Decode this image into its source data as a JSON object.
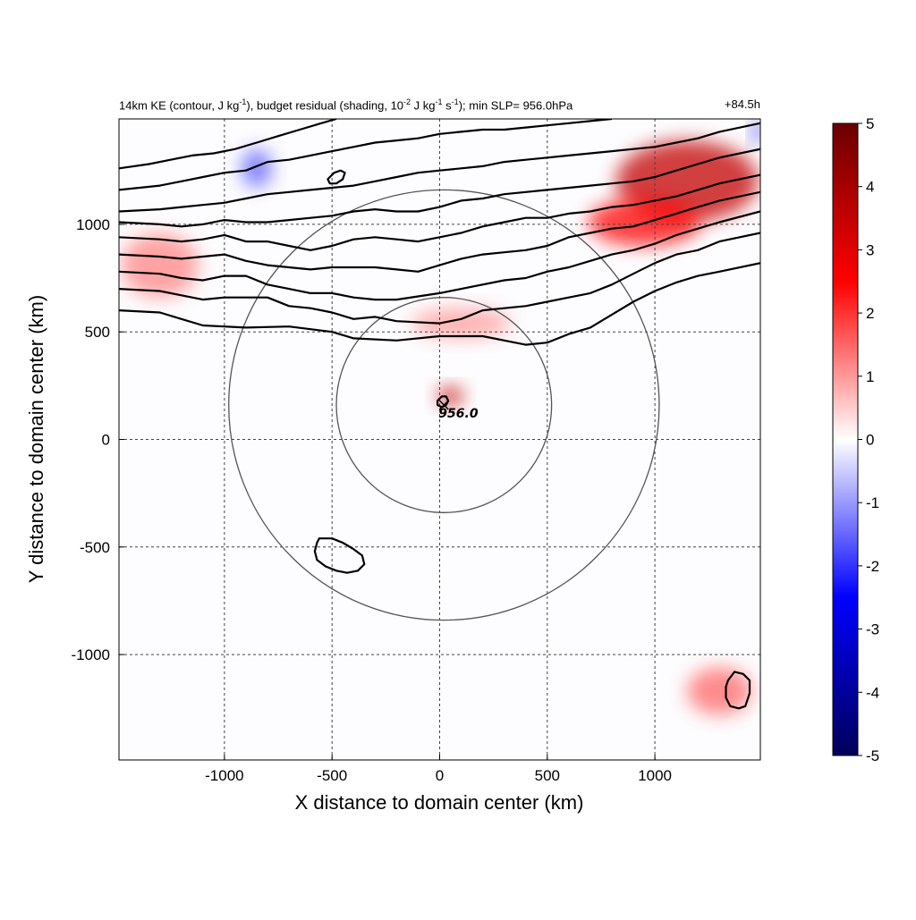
{
  "header": {
    "title_prefix": "14km KE (contour, J kg",
    "sup1": "-1",
    "title_mid1": "), budget residual (shading, 10",
    "sup2": "-2",
    "title_mid2": " J kg",
    "sup3": "-1",
    "title_mid3": " s",
    "sup4": "-1",
    "title_suffix": "); min SLP= 956.0hPa",
    "time_label": "+84.5h"
  },
  "chart_data": {
    "type": "heatmap",
    "xlabel": "X distance to domain center (km)",
    "ylabel": "Y distance to domain center (km)",
    "xlim": [
      -1490,
      1490
    ],
    "ylim": [
      -1490,
      1490
    ],
    "x_ticks": [
      -1000,
      -500,
      0,
      500,
      1000
    ],
    "y_ticks": [
      -1000,
      -500,
      0,
      500,
      1000
    ],
    "x_tick_labels": [
      "-1000",
      "-500",
      "0",
      "500",
      "1000"
    ],
    "y_tick_labels": [
      "-1000",
      "-500",
      "0",
      "500",
      "1000"
    ],
    "grid": true,
    "colorbar": {
      "min": -5,
      "max": 5,
      "ticks": [
        5,
        4,
        3,
        2,
        1,
        0,
        -1,
        -2,
        -3,
        -4,
        -5
      ],
      "tick_labels": [
        "5",
        "4",
        "3",
        "2",
        "1",
        "0",
        "-1",
        "-2",
        "-3",
        "-4",
        "-5"
      ],
      "colormap": [
        "#00005a",
        "#0000ff",
        "#ffffff",
        "#ff0000",
        "#6a0000"
      ]
    },
    "storm_center": {
      "x": 20,
      "y": 160,
      "label": "956.0"
    },
    "range_rings_km": [
      500,
      1000
    ],
    "ke_contours": [
      [
        [
          -1490,
          600
        ],
        [
          -1300,
          590
        ],
        [
          -1200,
          560
        ],
        [
          -1100,
          530
        ],
        [
          -1000,
          525
        ],
        [
          -900,
          520
        ],
        [
          -700,
          525
        ],
        [
          -500,
          500
        ],
        [
          -400,
          470
        ],
        [
          -200,
          460
        ],
        [
          0,
          480
        ],
        [
          200,
          480
        ],
        [
          400,
          440
        ],
        [
          500,
          450
        ],
        [
          600,
          490
        ],
        [
          700,
          520
        ],
        [
          800,
          580
        ],
        [
          900,
          640
        ],
        [
          1000,
          690
        ],
        [
          1100,
          730
        ],
        [
          1200,
          760
        ],
        [
          1300,
          780
        ],
        [
          1490,
          820
        ]
      ],
      [
        [
          -1490,
          700
        ],
        [
          -1300,
          690
        ],
        [
          -1200,
          670
        ],
        [
          -1100,
          650
        ],
        [
          -1000,
          660
        ],
        [
          -900,
          660
        ],
        [
          -800,
          660
        ],
        [
          -700,
          620
        ],
        [
          -600,
          610
        ],
        [
          -500,
          590
        ],
        [
          -400,
          560
        ],
        [
          -300,
          570
        ],
        [
          -200,
          550
        ],
        [
          0,
          540
        ],
        [
          100,
          560
        ],
        [
          200,
          600
        ],
        [
          300,
          610
        ],
        [
          400,
          620
        ],
        [
          500,
          640
        ],
        [
          600,
          660
        ],
        [
          700,
          680
        ],
        [
          800,
          720
        ],
        [
          900,
          770
        ],
        [
          1000,
          820
        ],
        [
          1100,
          860
        ],
        [
          1200,
          880
        ],
        [
          1300,
          920
        ],
        [
          1490,
          960
        ]
      ],
      [
        [
          -1490,
          780
        ],
        [
          -1300,
          770
        ],
        [
          -1200,
          750
        ],
        [
          -1100,
          740
        ],
        [
          -1000,
          760
        ],
        [
          -900,
          760
        ],
        [
          -800,
          720
        ],
        [
          -700,
          700
        ],
        [
          -600,
          680
        ],
        [
          -500,
          680
        ],
        [
          -400,
          660
        ],
        [
          -300,
          650
        ],
        [
          -200,
          650
        ],
        [
          0,
          680
        ],
        [
          100,
          700
        ],
        [
          300,
          740
        ],
        [
          400,
          750
        ],
        [
          500,
          780
        ],
        [
          600,
          800
        ],
        [
          700,
          830
        ],
        [
          800,
          860
        ],
        [
          900,
          880
        ],
        [
          1000,
          910
        ],
        [
          1100,
          950
        ],
        [
          1200,
          980
        ],
        [
          1300,
          1010
        ],
        [
          1490,
          1060
        ]
      ],
      [
        [
          -1490,
          860
        ],
        [
          -1300,
          850
        ],
        [
          -1200,
          840
        ],
        [
          -1100,
          850
        ],
        [
          -1000,
          860
        ],
        [
          -900,
          830
        ],
        [
          -800,
          810
        ],
        [
          -700,
          800
        ],
        [
          -600,
          790
        ],
        [
          -500,
          800
        ],
        [
          -300,
          800
        ],
        [
          -200,
          790
        ],
        [
          -100,
          780
        ],
        [
          0,
          810
        ],
        [
          100,
          840
        ],
        [
          200,
          860
        ],
        [
          300,
          870
        ],
        [
          400,
          880
        ],
        [
          500,
          900
        ],
        [
          600,
          940
        ],
        [
          700,
          960
        ],
        [
          800,
          980
        ],
        [
          900,
          990
        ],
        [
          1000,
          1020
        ],
        [
          1100,
          1050
        ],
        [
          1200,
          1080
        ],
        [
          1300,
          1110
        ],
        [
          1490,
          1150
        ]
      ],
      [
        [
          -1490,
          940
        ],
        [
          -1300,
          930
        ],
        [
          -1200,
          920
        ],
        [
          -1100,
          930
        ],
        [
          -1000,
          950
        ],
        [
          -900,
          920
        ],
        [
          -800,
          920
        ],
        [
          -700,
          900
        ],
        [
          -600,
          880
        ],
        [
          -500,
          900
        ],
        [
          -400,
          930
        ],
        [
          -300,
          940
        ],
        [
          -200,
          930
        ],
        [
          -100,
          920
        ],
        [
          0,
          940
        ],
        [
          100,
          960
        ],
        [
          200,
          990
        ],
        [
          300,
          1010
        ],
        [
          400,
          1030
        ],
        [
          500,
          1030
        ],
        [
          600,
          1050
        ],
        [
          700,
          1060
        ],
        [
          800,
          1080
        ],
        [
          900,
          1090
        ],
        [
          1000,
          1110
        ],
        [
          1100,
          1130
        ],
        [
          1200,
          1160
        ],
        [
          1300,
          1190
        ],
        [
          1490,
          1230
        ]
      ],
      [
        [
          -1490,
          1010
        ],
        [
          -1300,
          1000
        ],
        [
          -1200,
          990
        ],
        [
          -1100,
          1000
        ],
        [
          -1000,
          1020
        ],
        [
          -900,
          1010
        ],
        [
          -800,
          1010
        ],
        [
          -700,
          1020
        ],
        [
          -600,
          1030
        ],
        [
          -500,
          1040
        ],
        [
          -400,
          1060
        ],
        [
          -300,
          1070
        ],
        [
          -200,
          1060
        ],
        [
          -100,
          1060
        ],
        [
          0,
          1080
        ],
        [
          100,
          1110
        ],
        [
          200,
          1120
        ],
        [
          300,
          1140
        ],
        [
          400,
          1150
        ],
        [
          500,
          1160
        ],
        [
          600,
          1170
        ],
        [
          700,
          1180
        ],
        [
          800,
          1190
        ],
        [
          900,
          1200
        ],
        [
          1000,
          1220
        ],
        [
          1100,
          1250
        ],
        [
          1200,
          1280
        ],
        [
          1300,
          1310
        ],
        [
          1490,
          1350
        ]
      ],
      [
        [
          -1490,
          1060
        ],
        [
          -1300,
          1070
        ],
        [
          -1200,
          1080
        ],
        [
          -1100,
          1090
        ],
        [
          -1000,
          1100
        ],
        [
          -900,
          1120
        ],
        [
          -800,
          1140
        ],
        [
          -700,
          1150
        ],
        [
          -600,
          1160
        ],
        [
          -500,
          1170
        ],
        [
          -400,
          1180
        ],
        [
          -300,
          1200
        ],
        [
          -200,
          1220
        ],
        [
          -100,
          1240
        ],
        [
          0,
          1250
        ],
        [
          100,
          1260
        ],
        [
          200,
          1270
        ],
        [
          300,
          1290
        ],
        [
          400,
          1300
        ],
        [
          500,
          1310
        ],
        [
          600,
          1320
        ],
        [
          700,
          1330
        ],
        [
          800,
          1340
        ],
        [
          900,
          1350
        ],
        [
          1000,
          1360
        ],
        [
          1100,
          1380
        ],
        [
          1200,
          1400
        ],
        [
          1300,
          1430
        ],
        [
          1490,
          1470
        ]
      ],
      [
        [
          -1490,
          1160
        ],
        [
          -1300,
          1180
        ],
        [
          -1200,
          1200
        ],
        [
          -1100,
          1220
        ],
        [
          -1000,
          1240
        ],
        [
          -900,
          1250
        ],
        [
          -800,
          1290
        ],
        [
          -700,
          1300
        ],
        [
          -600,
          1320
        ],
        [
          -500,
          1340
        ],
        [
          -400,
          1360
        ],
        [
          -300,
          1380
        ],
        [
          -200,
          1390
        ],
        [
          -100,
          1400
        ],
        [
          0,
          1420
        ],
        [
          100,
          1430
        ],
        [
          200,
          1440
        ],
        [
          300,
          1440
        ],
        [
          400,
          1450
        ],
        [
          500,
          1460
        ],
        [
          600,
          1470
        ],
        [
          700,
          1480
        ],
        [
          800,
          1490
        ]
      ],
      [
        [
          -1490,
          1260
        ],
        [
          -1350,
          1280
        ],
        [
          -1250,
          1300
        ],
        [
          -1150,
          1320
        ],
        [
          -1050,
          1330
        ],
        [
          -950,
          1350
        ],
        [
          -850,
          1380
        ],
        [
          -750,
          1410
        ],
        [
          -650,
          1440
        ],
        [
          -550,
          1470
        ],
        [
          -480,
          1490
        ]
      ]
    ],
    "ke_small_contours": [
      [
        [
          -560,
          -460
        ],
        [
          -500,
          -460
        ],
        [
          -450,
          -480
        ],
        [
          -400,
          -510
        ],
        [
          -360,
          -540
        ],
        [
          -350,
          -580
        ],
        [
          -380,
          -610
        ],
        [
          -430,
          -620
        ],
        [
          -480,
          -610
        ],
        [
          -530,
          -590
        ],
        [
          -570,
          -560
        ],
        [
          -580,
          -520
        ],
        [
          -570,
          -480
        ]
      ],
      [
        [
          1370,
          -1080
        ],
        [
          1410,
          -1090
        ],
        [
          1440,
          -1120
        ],
        [
          1440,
          -1180
        ],
        [
          1420,
          -1240
        ],
        [
          1390,
          -1250
        ],
        [
          1350,
          -1240
        ],
        [
          1330,
          -1200
        ],
        [
          1330,
          -1150
        ],
        [
          1340,
          -1120
        ]
      ],
      [
        [
          -520,
          1210
        ],
        [
          -490,
          1240
        ],
        [
          -460,
          1250
        ],
        [
          -440,
          1240
        ],
        [
          -450,
          1210
        ],
        [
          -480,
          1190
        ],
        [
          -510,
          1190
        ]
      ],
      [
        [
          -10,
          180
        ],
        [
          10,
          200
        ],
        [
          30,
          200
        ],
        [
          40,
          180
        ],
        [
          30,
          160
        ],
        [
          10,
          150
        ],
        [
          -10,
          160
        ]
      ]
    ],
    "red_patches": [
      {
        "x": 1150,
        "y": 1200,
        "rx": 330,
        "ry": 190,
        "strength": 3.5
      },
      {
        "x": 950,
        "y": 1010,
        "rx": 260,
        "ry": 110,
        "strength": 2.5
      },
      {
        "x": 50,
        "y": 200,
        "rx": 60,
        "ry": 45,
        "strength": 3.5
      },
      {
        "x": 100,
        "y": 540,
        "rx": 230,
        "ry": 70,
        "strength": 1.0
      },
      {
        "x": -1300,
        "y": 810,
        "rx": 180,
        "ry": 150,
        "strength": 1.2
      },
      {
        "x": 1300,
        "y": -1170,
        "rx": 150,
        "ry": 110,
        "strength": 1.5
      }
    ],
    "blue_patches": [
      {
        "x": -850,
        "y": 1260,
        "rx": 70,
        "ry": 90,
        "strength": 2.0
      },
      {
        "x": 1480,
        "y": 1430,
        "rx": 30,
        "ry": 50,
        "strength": 3.0
      }
    ]
  }
}
